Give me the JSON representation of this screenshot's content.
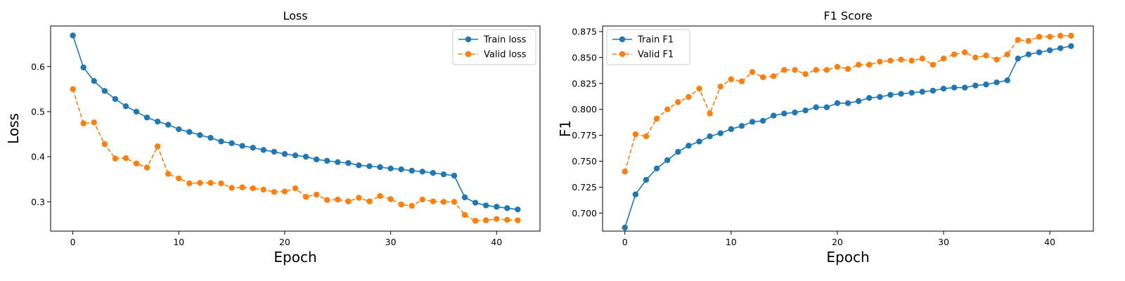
{
  "chart_data": [
    {
      "type": "line",
      "title": "Loss",
      "xlabel": "Epoch",
      "ylabel": "Loss",
      "xlim": [
        -2.1,
        44.1
      ],
      "ylim": [
        0.235,
        0.69
      ],
      "xticks": [
        0,
        10,
        20,
        30,
        40
      ],
      "yticks": [
        0.3,
        0.4,
        0.5,
        0.6
      ],
      "ytick_decimals": 1,
      "legend_position": "upper right",
      "grid": false,
      "x": [
        0,
        1,
        2,
        3,
        4,
        5,
        6,
        7,
        8,
        9,
        10,
        11,
        12,
        13,
        14,
        15,
        16,
        17,
        18,
        19,
        20,
        21,
        22,
        23,
        24,
        25,
        26,
        27,
        28,
        29,
        30,
        31,
        32,
        33,
        34,
        35,
        36,
        37,
        38,
        39,
        40,
        41,
        42
      ],
      "series": [
        {
          "name": "Train loss",
          "color": "#1f77b4",
          "dashed": false,
          "values": [
            0.669,
            0.598,
            0.568,
            0.546,
            0.528,
            0.512,
            0.5,
            0.487,
            0.478,
            0.471,
            0.461,
            0.455,
            0.448,
            0.442,
            0.434,
            0.43,
            0.424,
            0.42,
            0.415,
            0.411,
            0.406,
            0.403,
            0.4,
            0.394,
            0.391,
            0.388,
            0.386,
            0.381,
            0.379,
            0.377,
            0.374,
            0.372,
            0.369,
            0.367,
            0.364,
            0.361,
            0.358,
            0.31,
            0.298,
            0.292,
            0.289,
            0.286,
            0.283
          ]
        },
        {
          "name": "Valid loss",
          "color": "#ff7f0e",
          "dashed": true,
          "values": [
            0.55,
            0.474,
            0.476,
            0.428,
            0.396,
            0.397,
            0.385,
            0.376,
            0.423,
            0.362,
            0.352,
            0.341,
            0.342,
            0.342,
            0.341,
            0.331,
            0.332,
            0.33,
            0.327,
            0.322,
            0.323,
            0.33,
            0.311,
            0.316,
            0.304,
            0.305,
            0.301,
            0.309,
            0.301,
            0.313,
            0.306,
            0.294,
            0.291,
            0.305,
            0.301,
            0.3,
            0.3,
            0.271,
            0.258,
            0.259,
            0.262,
            0.26,
            0.259
          ]
        }
      ]
    },
    {
      "type": "line",
      "title": "F1 Score",
      "xlabel": "Epoch",
      "ylabel": "F1",
      "xlim": [
        -2.1,
        44.1
      ],
      "ylim": [
        0.6826,
        0.8804
      ],
      "xticks": [
        0,
        10,
        20,
        30,
        40
      ],
      "yticks": [
        0.7,
        0.725,
        0.75,
        0.775,
        0.8,
        0.825,
        0.85,
        0.875
      ],
      "ytick_decimals": 3,
      "legend_position": "upper left",
      "grid": false,
      "x": [
        0,
        1,
        2,
        3,
        4,
        5,
        6,
        7,
        8,
        9,
        10,
        11,
        12,
        13,
        14,
        15,
        16,
        17,
        18,
        19,
        20,
        21,
        22,
        23,
        24,
        25,
        26,
        27,
        28,
        29,
        30,
        31,
        32,
        33,
        34,
        35,
        36,
        37,
        38,
        39,
        40,
        41,
        42
      ],
      "series": [
        {
          "name": "Train F1",
          "color": "#1f77b4",
          "dashed": false,
          "values": [
            0.686,
            0.718,
            0.732,
            0.743,
            0.751,
            0.759,
            0.765,
            0.769,
            0.774,
            0.777,
            0.781,
            0.784,
            0.788,
            0.789,
            0.794,
            0.796,
            0.797,
            0.799,
            0.802,
            0.802,
            0.806,
            0.806,
            0.808,
            0.811,
            0.812,
            0.814,
            0.815,
            0.816,
            0.817,
            0.818,
            0.82,
            0.821,
            0.821,
            0.823,
            0.824,
            0.826,
            0.828,
            0.849,
            0.853,
            0.855,
            0.857,
            0.859,
            0.861
          ]
        },
        {
          "name": "Valid F1",
          "color": "#ff7f0e",
          "dashed": true,
          "values": [
            0.74,
            0.776,
            0.774,
            0.791,
            0.8,
            0.807,
            0.812,
            0.82,
            0.796,
            0.822,
            0.829,
            0.827,
            0.836,
            0.831,
            0.832,
            0.838,
            0.838,
            0.834,
            0.838,
            0.838,
            0.841,
            0.839,
            0.843,
            0.843,
            0.846,
            0.847,
            0.848,
            0.847,
            0.849,
            0.843,
            0.849,
            0.853,
            0.855,
            0.85,
            0.852,
            0.848,
            0.853,
            0.867,
            0.866,
            0.87,
            0.87,
            0.871,
            0.871
          ]
        }
      ]
    }
  ]
}
